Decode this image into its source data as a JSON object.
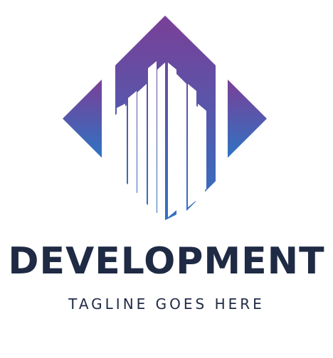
{
  "logo": {
    "name": "DEVELOPMENT",
    "tagline": "TAGLINE GOES HERE",
    "icon": "building-diamond-icon",
    "colors": {
      "gradient_top": "#7a3f97",
      "gradient_bottom": "#2f73c3",
      "text": "#1f2a44",
      "background": "#ffffff"
    }
  }
}
